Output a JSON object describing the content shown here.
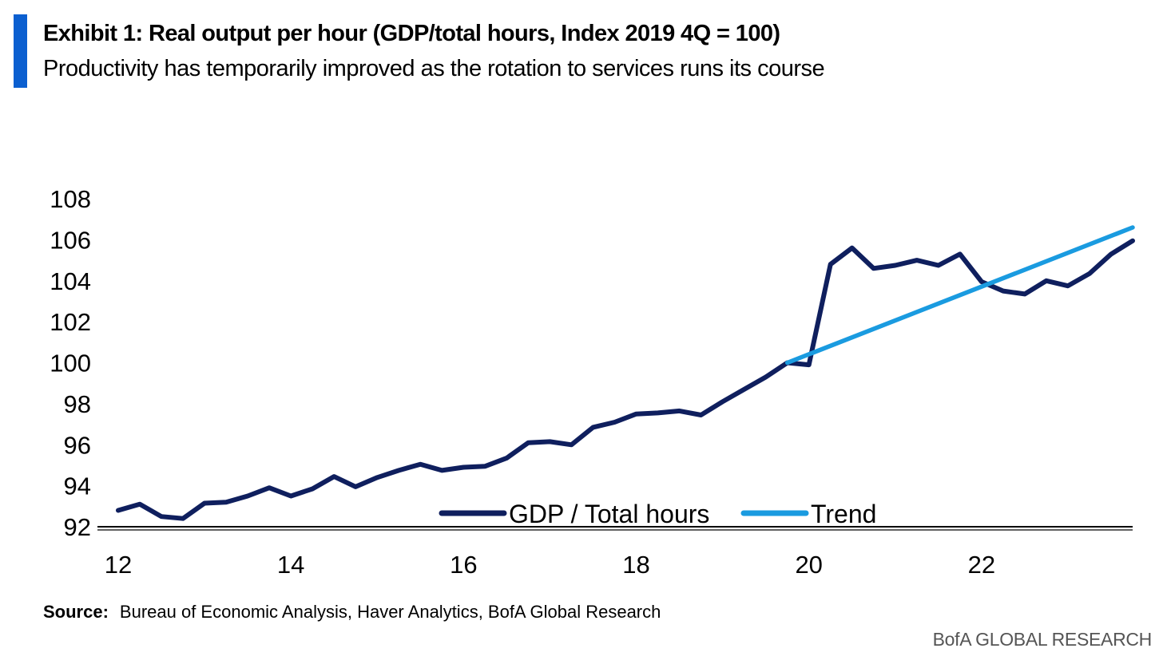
{
  "header": {
    "title": "Exhibit 1: Real output per hour (GDP/total hours, Index 2019 4Q = 100)",
    "subtitle": "Productivity has temporarily improved as the rotation to services runs its course"
  },
  "footer": {
    "source_label": "Source:",
    "source_text": "Bureau of Economic Analysis, Haver Analytics, BofA Global Research",
    "brand": "BofA GLOBAL RESEARCH"
  },
  "colors": {
    "accent": "#0b5fd0",
    "series_gdp": "#0f1f5e",
    "series_trend": "#1a9be0"
  },
  "chart_data": {
    "type": "line",
    "title": "Exhibit 1: Real output per hour (GDP/total hours, Index 2019 4Q = 100)",
    "subtitle": "Productivity has temporarily improved as the rotation to services runs its course",
    "xlabel": "",
    "ylabel": "",
    "xlim": [
      12,
      23.75
    ],
    "ylim": [
      92,
      108
    ],
    "x_ticks": [
      12,
      14,
      16,
      18,
      20,
      22
    ],
    "x_tick_labels": [
      "12",
      "14",
      "16",
      "18",
      "20",
      "22"
    ],
    "y_ticks": [
      92,
      94,
      96,
      98,
      100,
      102,
      104,
      106,
      108
    ],
    "y_tick_labels": [
      "92",
      "94",
      "96",
      "98",
      "100",
      "102",
      "104",
      "106",
      "108"
    ],
    "grid": false,
    "legend_position": "bottom-center",
    "series": [
      {
        "name": "GDP / Total hours",
        "color": "#0f1f5e",
        "x": [
          12.0,
          12.25,
          12.5,
          12.75,
          13.0,
          13.25,
          13.5,
          13.75,
          14.0,
          14.25,
          14.5,
          14.75,
          15.0,
          15.25,
          15.5,
          15.75,
          16.0,
          16.25,
          16.5,
          16.75,
          17.0,
          17.25,
          17.5,
          17.75,
          18.0,
          18.25,
          18.5,
          18.75,
          19.0,
          19.25,
          19.5,
          19.75,
          20.0,
          20.25,
          20.5,
          20.75,
          21.0,
          21.25,
          21.5,
          21.75,
          22.0,
          22.25,
          22.5,
          22.75,
          23.0,
          23.25,
          23.5,
          23.75
        ],
        "values": [
          92.8,
          93.1,
          92.5,
          92.4,
          93.15,
          93.2,
          93.5,
          93.9,
          93.5,
          93.85,
          94.45,
          93.95,
          94.4,
          94.75,
          95.05,
          94.75,
          94.9,
          94.95,
          95.35,
          96.1,
          96.15,
          96.0,
          96.85,
          97.1,
          97.5,
          97.55,
          97.65,
          97.45,
          98.1,
          98.7,
          99.3,
          100.0,
          99.9,
          104.8,
          105.6,
          104.6,
          104.75,
          105.0,
          104.75,
          105.3,
          103.95,
          103.5,
          103.35,
          104.0,
          103.75,
          104.35,
          105.3,
          105.95
        ]
      },
      {
        "name": "Trend",
        "color": "#1a9be0",
        "x": [
          19.75,
          23.75
        ],
        "values": [
          100.0,
          106.6
        ]
      }
    ]
  }
}
